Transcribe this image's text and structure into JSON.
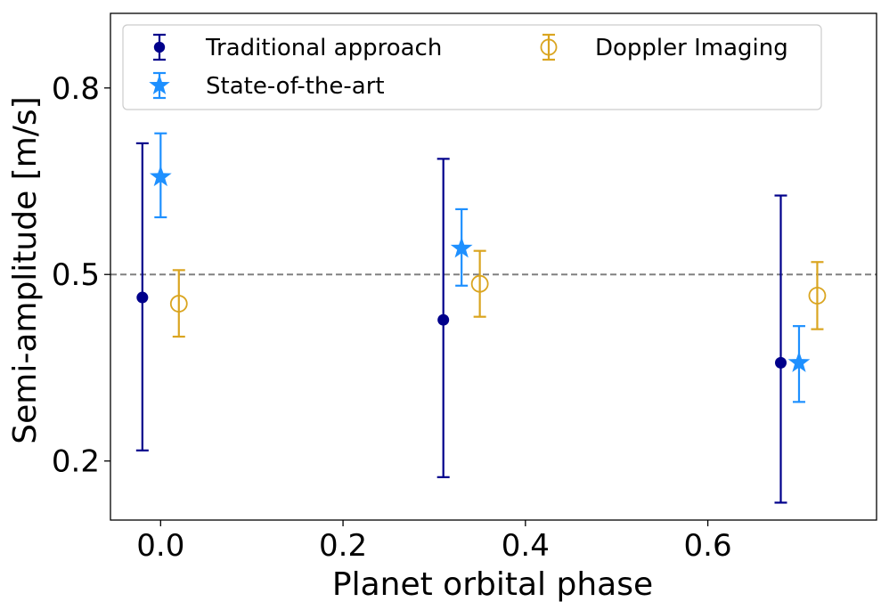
{
  "chart_data": {
    "type": "scatter",
    "title": "",
    "xlabel": "Planet orbital phase",
    "ylabel": "Semi-amplitude [m/s]",
    "xlim": [
      -0.055,
      0.785
    ],
    "ylim": [
      0.105,
      0.92
    ],
    "xticks": [
      0.0,
      0.2,
      0.4,
      0.6
    ],
    "xtick_labels": [
      "0.0",
      "0.2",
      "0.4",
      "0.6"
    ],
    "yticks": [
      0.2,
      0.5,
      0.8
    ],
    "ytick_labels": [
      "0.2",
      "0.5",
      "0.8"
    ],
    "reference_line": {
      "y": 0.5,
      "style": "dashed",
      "color": "#808080"
    },
    "legend": {
      "placement": "top",
      "columns": 2
    },
    "grid": false,
    "series": [
      {
        "name": "Traditional approach",
        "marker": "circle-filled",
        "color": "#00008b",
        "points": [
          {
            "x": -0.02,
            "y": 0.463,
            "err_low": 0.246,
            "err_high": 0.248
          },
          {
            "x": 0.31,
            "y": 0.427,
            "err_low": 0.253,
            "err_high": 0.259
          },
          {
            "x": 0.68,
            "y": 0.358,
            "err_low": 0.225,
            "err_high": 0.269
          }
        ]
      },
      {
        "name": "State-of-the-art",
        "marker": "star",
        "color": "#1e90ff",
        "points": [
          {
            "x": 0.0,
            "y": 0.657,
            "err_low": 0.065,
            "err_high": 0.07
          },
          {
            "x": 0.33,
            "y": 0.542,
            "err_low": 0.06,
            "err_high": 0.063
          },
          {
            "x": 0.7,
            "y": 0.358,
            "err_low": 0.063,
            "err_high": 0.059
          }
        ]
      },
      {
        "name": "Doppler Imaging",
        "marker": "circle-open",
        "color": "#daa520",
        "points": [
          {
            "x": 0.02,
            "y": 0.453,
            "err_low": 0.053,
            "err_high": 0.054
          },
          {
            "x": 0.35,
            "y": 0.485,
            "err_low": 0.053,
            "err_high": 0.053
          },
          {
            "x": 0.72,
            "y": 0.466,
            "err_low": 0.054,
            "err_high": 0.054
          }
        ]
      }
    ]
  }
}
